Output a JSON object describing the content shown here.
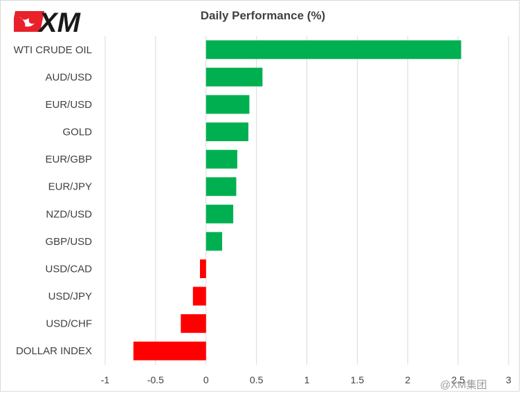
{
  "brand": {
    "name": "XM",
    "logo_colors": {
      "box": "#e8212b",
      "text": "#1a1a1a"
    }
  },
  "watermark": "@XM集团",
  "colors": {
    "positive": "#00b050",
    "negative": "#ff0000",
    "grid": "#d9d9d9",
    "text": "#404040"
  },
  "chart_data": {
    "type": "bar",
    "orientation": "horizontal",
    "title": "Daily Performance  (%)",
    "categories": [
      "WTI CRUDE OIL",
      "AUD/USD",
      "EUR/USD",
      "GOLD",
      "EUR/GBP",
      "EUR/JPY",
      "NZD/USD",
      "GBP/USD",
      "USD/CAD",
      "USD/JPY",
      "USD/CHF",
      "DOLLAR INDEX"
    ],
    "values": [
      2.53,
      0.56,
      0.43,
      0.42,
      0.31,
      0.3,
      0.27,
      0.16,
      -0.06,
      -0.13,
      -0.25,
      -0.72
    ],
    "xlim": [
      -1,
      3
    ],
    "xticks": [
      -1,
      -0.5,
      0,
      0.5,
      1,
      1.5,
      2,
      2.5,
      3
    ],
    "xtick_labels": [
      "-1",
      "-0.5",
      "0",
      "0.5",
      "1",
      "1.5",
      "2",
      "2.5",
      "3"
    ],
    "grid": "vertical",
    "legend": "none"
  }
}
